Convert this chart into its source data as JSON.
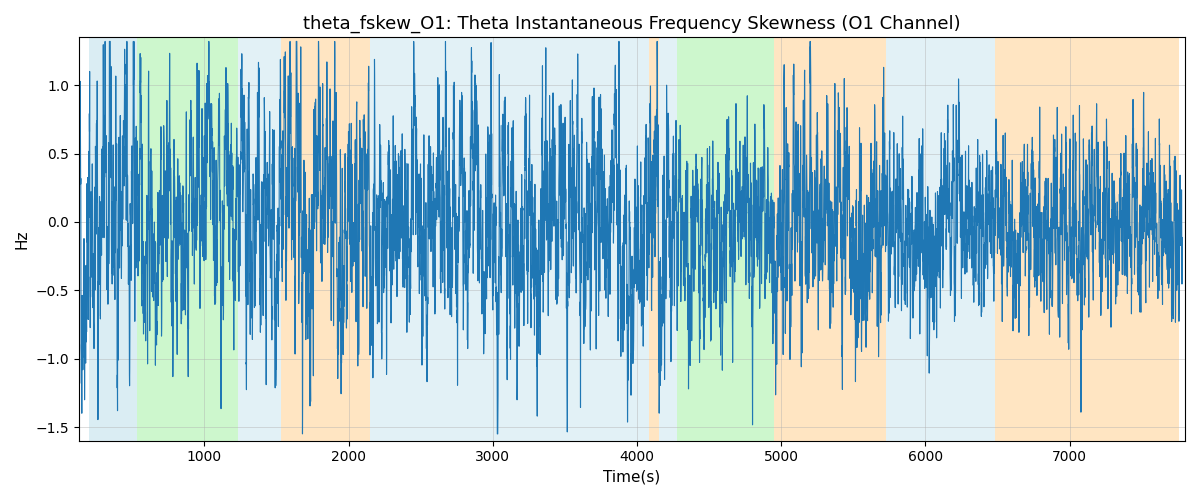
{
  "title": "theta_fskew_O1: Theta Instantaneous Frequency Skewness (O1 Channel)",
  "xlabel": "Time(s)",
  "ylabel": "Hz",
  "ylim": [
    -1.6,
    1.35
  ],
  "xlim": [
    130,
    7800
  ],
  "bg_bands": [
    {
      "xmin": 200,
      "xmax": 530,
      "color": "#add8e6",
      "alpha": 0.45
    },
    {
      "xmin": 530,
      "xmax": 1230,
      "color": "#90ee90",
      "alpha": 0.45
    },
    {
      "xmin": 1230,
      "xmax": 1530,
      "color": "#add8e6",
      "alpha": 0.35
    },
    {
      "xmin": 1530,
      "xmax": 2150,
      "color": "#ffd59a",
      "alpha": 0.6
    },
    {
      "xmin": 2150,
      "xmax": 4080,
      "color": "#add8e6",
      "alpha": 0.35
    },
    {
      "xmin": 4080,
      "xmax": 4150,
      "color": "#ffd59a",
      "alpha": 0.6
    },
    {
      "xmin": 4150,
      "xmax": 4280,
      "color": "#add8e6",
      "alpha": 0.35
    },
    {
      "xmin": 4280,
      "xmax": 4950,
      "color": "#90ee90",
      "alpha": 0.45
    },
    {
      "xmin": 4950,
      "xmax": 5730,
      "color": "#ffd59a",
      "alpha": 0.6
    },
    {
      "xmin": 5730,
      "xmax": 6480,
      "color": "#add8e6",
      "alpha": 0.35
    },
    {
      "xmin": 6480,
      "xmax": 7760,
      "color": "#ffd59a",
      "alpha": 0.6
    }
  ],
  "line_color": "#1f77b4",
  "line_width": 0.8,
  "grid_color": "#b0b0b0",
  "grid_alpha": 0.6,
  "title_fontsize": 13,
  "seed": 42,
  "n_points": 7600,
  "t_start": 130,
  "t_end": 7780
}
